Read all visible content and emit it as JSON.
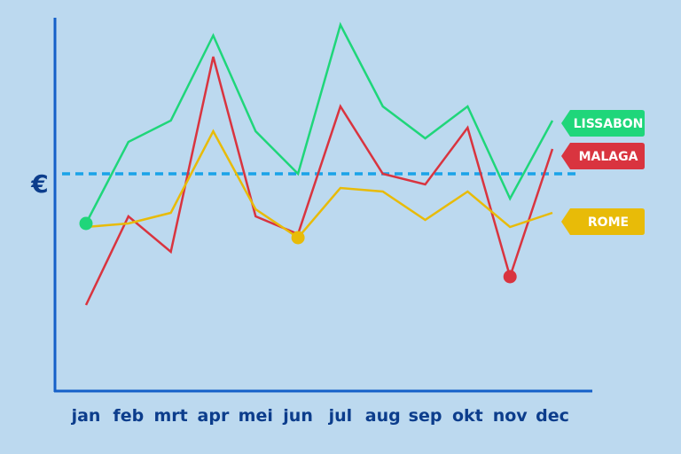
{
  "chart_data": {
    "type": "line",
    "title": "",
    "xlabel": "",
    "ylabel": "€",
    "categories": [
      "jan",
      "feb",
      "mrt",
      "apr",
      "mei",
      "jun",
      "jul",
      "aug",
      "sep",
      "okt",
      "nov",
      "dec"
    ],
    "ylim": [
      0,
      100
    ],
    "reference_line": {
      "value": 56,
      "style": "dashed",
      "color": "#1aa3e8"
    },
    "series": [
      {
        "name": "LISSABON",
        "color": "#1fd67a",
        "values": [
          42,
          65,
          71,
          95,
          68,
          56,
          98,
          75,
          66,
          75,
          49,
          71
        ],
        "markers": [
          0
        ]
      },
      {
        "name": "MALAGA",
        "color": "#d9343f",
        "values": [
          19,
          44,
          34,
          89,
          44,
          39,
          75,
          56,
          53,
          69,
          27,
          63
        ],
        "markers": [
          10
        ]
      },
      {
        "name": "ROME",
        "color": "#e8bb08",
        "values": [
          41,
          42,
          45,
          68,
          46,
          38,
          52,
          51,
          43,
          51,
          41,
          45
        ],
        "markers": [
          5
        ]
      }
    ],
    "grid": false,
    "legend": "right, tags at line ends"
  }
}
